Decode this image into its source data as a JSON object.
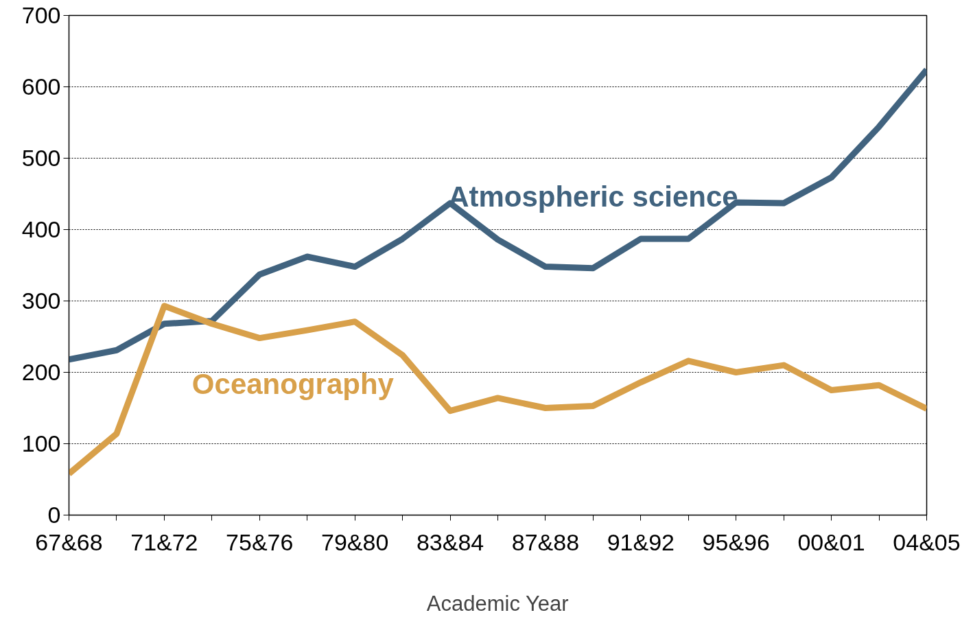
{
  "chart_data": {
    "type": "line",
    "xlabel": "Academic Year",
    "categories": [
      "67&68",
      null,
      "71&72",
      null,
      "75&76",
      null,
      "79&80",
      null,
      "83&84",
      null,
      "87&88",
      null,
      "91&92",
      null,
      "95&96",
      null,
      "00&01",
      null,
      "04&05"
    ],
    "series": [
      {
        "name": "Atmospheric science",
        "color": "#41637f",
        "values": [
          218,
          231,
          268,
          272,
          337,
          362,
          348,
          387,
          437,
          386,
          348,
          346,
          387,
          387,
          438,
          437,
          473,
          544,
          624
        ]
      },
      {
        "name": "Oceanography",
        "color": "#d8a04a",
        "values": [
          58,
          114,
          293,
          268,
          248,
          259,
          271,
          224,
          146,
          164,
          150,
          153,
          186,
          216,
          200,
          210,
          175,
          182,
          149
        ]
      }
    ],
    "ylim": [
      0,
      700
    ],
    "yticks": [
      0,
      100,
      200,
      300,
      400,
      500,
      600,
      700
    ],
    "grid": "y",
    "legend": false,
    "marker": "none",
    "line_style": "solid"
  }
}
